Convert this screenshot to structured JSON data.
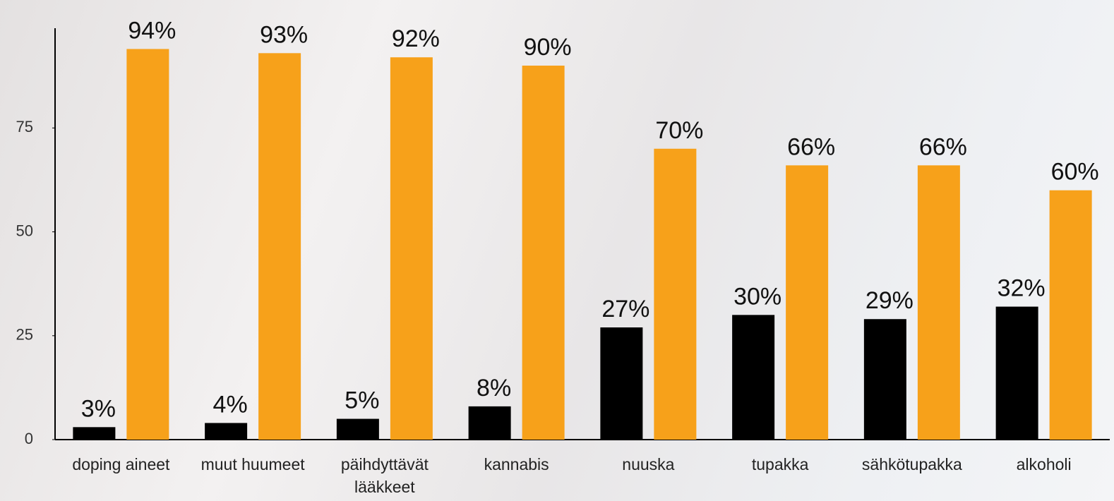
{
  "chart_data": {
    "type": "bar",
    "categories": [
      "doping aineet",
      "muut huumeet",
      "päihdyttävät lääkkeet",
      "kannabis",
      "nuuska",
      "tupakka",
      "sähkötupakka",
      "alkoholi"
    ],
    "series": [
      {
        "color": "#000000",
        "values": [
          3,
          4,
          5,
          8,
          27,
          30,
          29,
          32
        ],
        "value_labels": [
          "3%",
          "4%",
          "5%",
          "8%",
          "27%",
          "30%",
          "29%",
          "32%"
        ]
      },
      {
        "color": "#f7a11a",
        "values": [
          94,
          93,
          92,
          90,
          70,
          66,
          66,
          60
        ],
        "value_labels": [
          "94%",
          "93%",
          "92%",
          "90%",
          "70%",
          "66%",
          "66%",
          "60%"
        ]
      }
    ],
    "ylim": [
      0,
      99
    ],
    "yticks": [
      0,
      25,
      50,
      75
    ],
    "grid": false
  }
}
